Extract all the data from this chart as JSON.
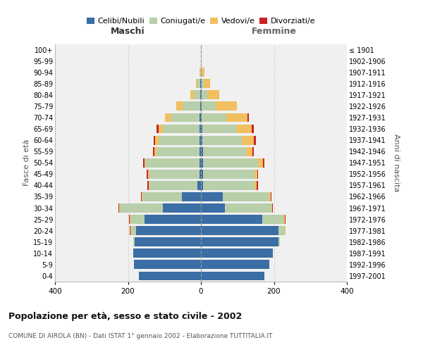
{
  "age_groups": [
    "0-4",
    "5-9",
    "10-14",
    "15-19",
    "20-24",
    "25-29",
    "30-34",
    "35-39",
    "40-44",
    "45-49",
    "50-54",
    "55-59",
    "60-64",
    "65-69",
    "70-74",
    "75-79",
    "80-84",
    "85-89",
    "90-94",
    "95-99",
    "100+"
  ],
  "birth_years": [
    "1997-2001",
    "1992-1996",
    "1987-1991",
    "1982-1986",
    "1977-1981",
    "1972-1976",
    "1967-1971",
    "1962-1966",
    "1957-1961",
    "1952-1956",
    "1947-1951",
    "1942-1946",
    "1937-1941",
    "1932-1936",
    "1927-1931",
    "1922-1926",
    "1917-1921",
    "1912-1916",
    "1907-1911",
    "1902-1906",
    "≤ 1901"
  ],
  "maschi": {
    "celibi": [
      170,
      183,
      185,
      182,
      178,
      155,
      105,
      52,
      9,
      4,
      4,
      4,
      4,
      4,
      3,
      2,
      1,
      1,
      0,
      0,
      0
    ],
    "coniugati": [
      0,
      0,
      0,
      3,
      14,
      38,
      118,
      108,
      132,
      138,
      148,
      118,
      112,
      100,
      78,
      48,
      18,
      8,
      2,
      0,
      0
    ],
    "vedovi": [
      0,
      0,
      0,
      0,
      2,
      2,
      2,
      2,
      2,
      2,
      2,
      5,
      9,
      12,
      18,
      18,
      10,
      4,
      2,
      0,
      0
    ],
    "divorziati": [
      0,
      0,
      0,
      0,
      2,
      2,
      2,
      3,
      3,
      5,
      4,
      4,
      5,
      5,
      0,
      0,
      0,
      0,
      0,
      0,
      0
    ]
  },
  "femmine": {
    "nubili": [
      173,
      188,
      198,
      213,
      212,
      168,
      65,
      60,
      5,
      5,
      5,
      5,
      4,
      4,
      2,
      2,
      2,
      2,
      0,
      0,
      0
    ],
    "coniugate": [
      0,
      0,
      0,
      4,
      18,
      58,
      128,
      128,
      142,
      142,
      152,
      118,
      108,
      92,
      68,
      38,
      15,
      5,
      2,
      0,
      0
    ],
    "vedove": [
      0,
      0,
      0,
      0,
      2,
      3,
      3,
      3,
      5,
      7,
      13,
      18,
      33,
      43,
      58,
      58,
      33,
      18,
      8,
      1,
      1
    ],
    "divorziate": [
      0,
      0,
      0,
      0,
      0,
      2,
      2,
      3,
      5,
      3,
      4,
      4,
      5,
      5,
      3,
      0,
      0,
      0,
      0,
      0,
      0
    ]
  },
  "colors": {
    "celibi": "#3a6ea5",
    "coniugati": "#b8cfaa",
    "vedovi": "#f0c060",
    "divorziati": "#cc2222"
  },
  "title": "Popolazione per età, sesso e stato civile - 2002",
  "subtitle": "COMUNE DI AIROLA (BN) - Dati ISTAT 1° gennaio 2002 - Elaborazione TUTTITALIA.IT",
  "ylabel_left": "Fasce di età",
  "ylabel_right": "Anni di nascita",
  "label_maschi": "Maschi",
  "label_femmine": "Femmine",
  "legend_labels": [
    "Celibi/Nubili",
    "Coniugati/e",
    "Vedovi/e",
    "Divorziati/e"
  ],
  "xlim": 400,
  "bg_chart": "#f0f0f0",
  "bg_fig": "#ffffff",
  "grid_color": "#d0d0d0"
}
